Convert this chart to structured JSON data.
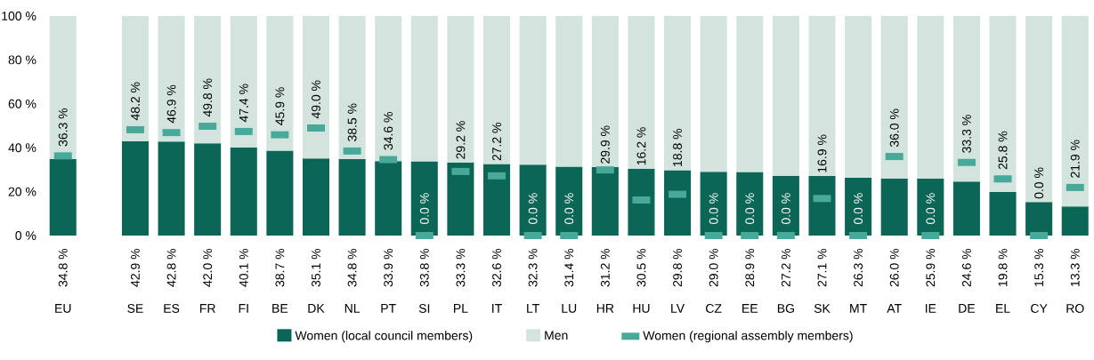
{
  "chart_data": {
    "type": "bar",
    "stacked": true,
    "legend": "bottom",
    "categories": [
      "EU",
      null,
      "SE",
      "ES",
      "FR",
      "FI",
      "BE",
      "DK",
      "NL",
      "PT",
      "SI",
      "PL",
      "IT",
      "LT",
      "LU",
      "HR",
      "HU",
      "LV",
      "CZ",
      "EE",
      "BG",
      "SK",
      "MT",
      "AT",
      "IE",
      "DE",
      "EL",
      "CY",
      "RO"
    ],
    "ylim": [
      0,
      100
    ],
    "yticks": [
      {
        "value": 0,
        "label": "0 %"
      },
      {
        "value": 20,
        "label": "20 %"
      },
      {
        "value": 40,
        "label": "40 %"
      },
      {
        "value": 60,
        "label": "60 %"
      },
      {
        "value": 80,
        "label": "80 %"
      },
      {
        "value": 100,
        "label": "100 %"
      }
    ],
    "series": [
      {
        "name": "Women (local council members)",
        "type": "bar",
        "color": "#0b6656",
        "values": [
          34.8,
          null,
          42.9,
          42.8,
          42.0,
          40.1,
          38.7,
          35.1,
          34.8,
          33.9,
          33.8,
          33.3,
          32.6,
          32.3,
          31.4,
          31.2,
          30.5,
          29.8,
          29.0,
          28.9,
          27.2,
          27.1,
          26.3,
          26.0,
          25.9,
          24.6,
          19.8,
          15.3,
          13.3
        ],
        "value_labels": [
          "34.8 %",
          null,
          "42.9 %",
          "42.8 %",
          "42.0 %",
          "40.1 %",
          "38.7 %",
          "35.1 %",
          "34.8 %",
          "33.9 %",
          "33.8 %",
          "33.3 %",
          "32.6 %",
          "32.3 %",
          "31.4 %",
          "31.2 %",
          "30.5 %",
          "29.8 %",
          "29.0 %",
          "28.9 %",
          "27.2 %",
          "27.1 %",
          "26.3 %",
          "26.0 %",
          "25.9 %",
          "24.6 %",
          "19.8 %",
          "15.3 %",
          "13.3 %"
        ]
      },
      {
        "name": "Men",
        "type": "bar",
        "color": "#d3e4df",
        "values": [
          65.2,
          null,
          57.1,
          57.2,
          58.0,
          59.9,
          61.3,
          64.9,
          65.2,
          66.1,
          66.2,
          66.7,
          67.4,
          67.7,
          68.6,
          68.8,
          69.5,
          70.2,
          71.0,
          71.1,
          72.8,
          72.9,
          73.7,
          74.0,
          74.1,
          75.4,
          80.2,
          84.7,
          86.7
        ]
      },
      {
        "name": "Women (regional assembly members)",
        "type": "scatter",
        "color": "#48a89a",
        "values": [
          36.3,
          null,
          48.2,
          46.9,
          49.8,
          47.4,
          45.9,
          49.0,
          38.5,
          34.6,
          0.0,
          29.2,
          27.2,
          0.0,
          0.0,
          29.9,
          16.2,
          18.8,
          0.0,
          0.0,
          0.0,
          16.9,
          0.0,
          36.0,
          0.0,
          33.3,
          25.8,
          0.0,
          21.9
        ],
        "value_labels": [
          "36.3 %",
          null,
          "48.2 %",
          "46.9 %",
          "49.8 %",
          "47.4 %",
          "45.9 %",
          "49.0 %",
          "38.5 %",
          "34.6 %",
          "0.0 %",
          "29.2 %",
          "27.2 %",
          "0.0 %",
          "0.0 %",
          "29.9 %",
          "16.2 %",
          "18.8 %",
          "0.0 %",
          "0.0 %",
          "0.0 %",
          "16.9 %",
          "0.0 %",
          "36.0 %",
          "0.0 %",
          "33.3 %",
          "25.8 %",
          "0.0 %",
          "21.9 %"
        ]
      }
    ]
  }
}
